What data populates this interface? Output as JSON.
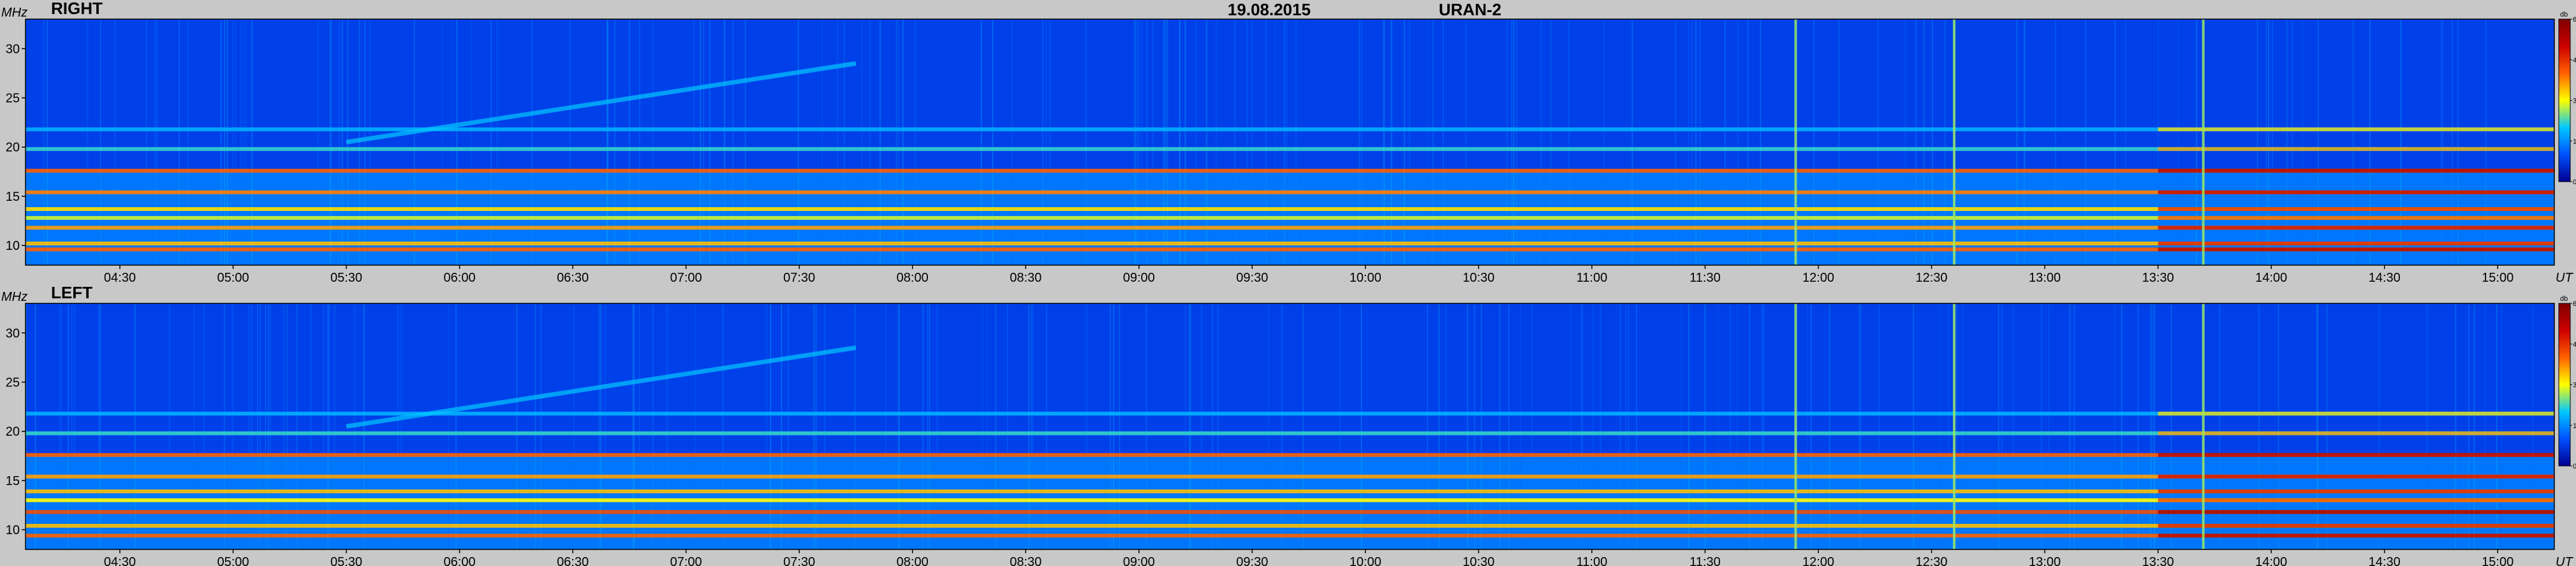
{
  "header": {
    "date": "19.08.2015",
    "station": "URAN-2"
  },
  "chart_data": [
    {
      "type": "heatmap",
      "title": "RIGHT",
      "ylabel": "MHz",
      "xlabel": "UT",
      "colorbar_label": "db",
      "x_ticks": [
        "04:30",
        "05:00",
        "05:30",
        "06:00",
        "06:30",
        "07:00",
        "07:30",
        "08:00",
        "08:30",
        "09:00",
        "09:30",
        "10:00",
        "10:30",
        "11:00",
        "11:30",
        "12:00",
        "12:30",
        "13:00",
        "13:30",
        "14:00",
        "14:30",
        "15:00"
      ],
      "xlim": [
        "04:05",
        "15:15"
      ],
      "y_ticks": [
        10,
        15,
        20,
        25,
        30
      ],
      "ylim": [
        8,
        33
      ],
      "colorbar_ticks": [
        0,
        15,
        30,
        45,
        60
      ],
      "colorbar_range": [
        0,
        60
      ],
      "colormap": [
        "#00008f",
        "#0050ff",
        "#00c8ff",
        "#ffff00",
        "#ff6000",
        "#cc0000",
        "#800000"
      ],
      "background_level_db": 8,
      "features": {
        "interference_bands_mhz": [
          {
            "f": 9.6,
            "db": 40
          },
          {
            "f": 10.2,
            "db": 34
          },
          {
            "f": 11.8,
            "db": 36
          },
          {
            "f": 12.8,
            "db": 28
          },
          {
            "f": 13.7,
            "db": 32
          },
          {
            "f": 15.4,
            "db": 38
          },
          {
            "f": 17.6,
            "db": 40
          },
          {
            "f": 19.8,
            "db": 22
          },
          {
            "f": 21.8,
            "db": 18
          }
        ],
        "drifting_feature": {
          "start_time": "05:30",
          "start_mhz": 20.5,
          "end_time": "07:45",
          "end_mhz": 28.5,
          "db": 20
        },
        "broadband_spikes_ut": [
          "11:54",
          "12:36",
          "13:42"
        ]
      }
    },
    {
      "type": "heatmap",
      "title": "LEFT",
      "ylabel": "MHz",
      "xlabel": "UT",
      "colorbar_label": "db",
      "x_ticks": [
        "04:30",
        "05:00",
        "05:30",
        "06:00",
        "06:30",
        "07:00",
        "07:30",
        "08:00",
        "08:30",
        "09:00",
        "09:30",
        "10:00",
        "10:30",
        "11:00",
        "11:30",
        "12:00",
        "12:30",
        "13:00",
        "13:30",
        "14:00",
        "14:30",
        "15:00"
      ],
      "xlim": [
        "04:05",
        "15:15"
      ],
      "y_ticks": [
        10,
        15,
        20,
        25,
        30
      ],
      "ylim": [
        8,
        33
      ],
      "colorbar_ticks": [
        0,
        15,
        30,
        45,
        60
      ],
      "colorbar_range": [
        0,
        60
      ],
      "colormap": [
        "#00008f",
        "#0050ff",
        "#00c8ff",
        "#ffff00",
        "#ff6000",
        "#cc0000",
        "#800000"
      ],
      "background_level_db": 8,
      "features": {
        "interference_bands_mhz": [
          {
            "f": 9.4,
            "db": 40
          },
          {
            "f": 10.4,
            "db": 34
          },
          {
            "f": 11.8,
            "db": 42
          },
          {
            "f": 13.0,
            "db": 30
          },
          {
            "f": 13.9,
            "db": 34
          },
          {
            "f": 15.4,
            "db": 36
          },
          {
            "f": 17.6,
            "db": 40
          },
          {
            "f": 19.8,
            "db": 22
          },
          {
            "f": 21.8,
            "db": 18
          }
        ],
        "drifting_feature": {
          "start_time": "05:30",
          "start_mhz": 20.5,
          "end_time": "07:45",
          "end_mhz": 28.5,
          "db": 20
        },
        "broadband_spikes_ut": [
          "11:54",
          "12:36",
          "13:42"
        ]
      }
    }
  ]
}
